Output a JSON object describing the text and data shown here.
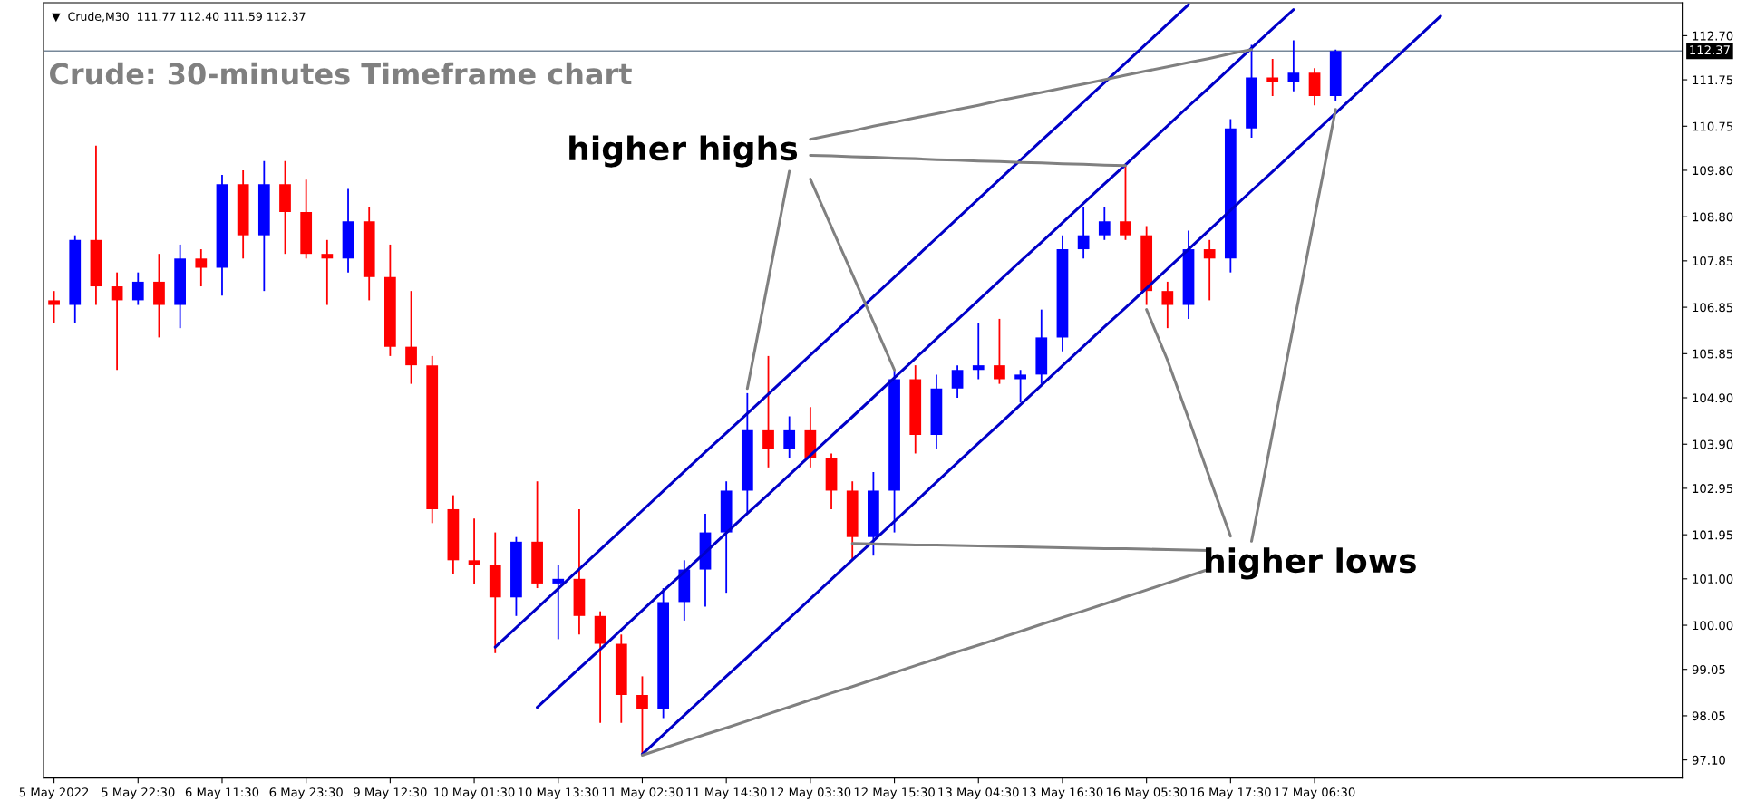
{
  "chart_data": {
    "type": "candlestick",
    "title": "Crude: 30-minutes Timeframe chart",
    "annotations": [
      "▼  Crude,M30  111.77 112.40 111.59 112.37",
      "higher highs",
      "higher lows"
    ],
    "categories": [
      "5 May 2022",
      null,
      null,
      null,
      "5 May 22:30",
      null,
      null,
      null,
      "6 May 11:30",
      null,
      null,
      null,
      "6 May 23:30",
      null,
      null,
      null,
      "9 May 12:30",
      null,
      null,
      null,
      "10 May 01:30",
      null,
      null,
      null,
      "10 May 13:30",
      null,
      null,
      null,
      "11 May 02:30",
      null,
      null,
      null,
      "11 May 14:30",
      null,
      null,
      null,
      "12 May 03:30",
      null,
      null,
      null,
      "12 May 15:30",
      null,
      null,
      null,
      "13 May 04:30",
      null,
      null,
      null,
      "13 May 16:30",
      null,
      null,
      null,
      "16 May 05:30",
      null,
      null,
      null,
      "16 May 17:30",
      null,
      null,
      null,
      "17 May 06:30",
      null,
      null,
      null,
      null,
      null,
      null,
      null,
      null,
      null,
      null,
      null,
      null,
      null,
      null,
      null,
      null,
      null
    ],
    "ohlc": [
      [
        107.0,
        107.2,
        106.5,
        106.9
      ],
      [
        106.9,
        108.4,
        106.5,
        108.3
      ],
      [
        108.3,
        110.33,
        106.9,
        107.3
      ],
      [
        107.3,
        107.6,
        105.5,
        107.0
      ],
      [
        107.0,
        107.6,
        106.9,
        107.4
      ],
      [
        107.4,
        108.0,
        106.2,
        106.9
      ],
      [
        106.9,
        108.2,
        106.4,
        107.9
      ],
      [
        107.9,
        108.1,
        107.3,
        107.7
      ],
      [
        107.7,
        109.7,
        107.1,
        109.5
      ],
      [
        109.5,
        109.8,
        107.9,
        108.4
      ],
      [
        108.4,
        110.0,
        107.2,
        109.5
      ],
      [
        109.5,
        110.0,
        108.0,
        108.9
      ],
      [
        108.9,
        109.6,
        107.9,
        108.0
      ],
      [
        108.0,
        108.3,
        106.9,
        107.9
      ],
      [
        107.9,
        109.4,
        107.6,
        108.7
      ],
      [
        108.7,
        109.0,
        107.0,
        107.5
      ],
      [
        107.5,
        108.2,
        105.8,
        106.0
      ],
      [
        106.0,
        107.2,
        105.2,
        105.6
      ],
      [
        105.6,
        105.8,
        102.2,
        102.5
      ],
      [
        102.5,
        102.8,
        101.1,
        101.4
      ],
      [
        101.4,
        102.3,
        100.9,
        101.3
      ],
      [
        101.3,
        102.0,
        99.4,
        100.6
      ],
      [
        100.6,
        101.9,
        100.2,
        101.8
      ],
      [
        101.8,
        103.1,
        100.8,
        100.9
      ],
      [
        100.9,
        101.3,
        99.7,
        101.0
      ],
      [
        101.0,
        102.5,
        99.8,
        100.2
      ],
      [
        100.2,
        100.3,
        97.9,
        99.6
      ],
      [
        99.6,
        99.8,
        97.9,
        98.5
      ],
      [
        98.5,
        98.9,
        97.2,
        98.2
      ],
      [
        98.2,
        100.8,
        98.0,
        100.5
      ],
      [
        100.5,
        101.4,
        100.1,
        101.2
      ],
      [
        101.2,
        102.4,
        100.4,
        102.0
      ],
      [
        102.0,
        103.1,
        100.7,
        102.9
      ],
      [
        102.9,
        105.0,
        102.4,
        104.2
      ],
      [
        104.2,
        105.8,
        103.4,
        103.8
      ],
      [
        103.8,
        104.5,
        103.6,
        104.2
      ],
      [
        104.2,
        104.7,
        103.4,
        103.6
      ],
      [
        103.6,
        103.7,
        102.5,
        102.9
      ],
      [
        102.9,
        103.1,
        101.4,
        101.9
      ],
      [
        101.9,
        103.3,
        101.5,
        102.9
      ],
      [
        102.9,
        105.5,
        102.0,
        105.3
      ],
      [
        105.3,
        105.6,
        103.7,
        104.1
      ],
      [
        104.1,
        105.4,
        103.8,
        105.1
      ],
      [
        105.1,
        105.6,
        104.9,
        105.5
      ],
      [
        105.5,
        106.5,
        105.3,
        105.6
      ],
      [
        105.6,
        106.6,
        105.2,
        105.3
      ],
      [
        105.3,
        105.5,
        104.8,
        105.4
      ],
      [
        105.4,
        106.8,
        105.2,
        106.2
      ],
      [
        106.2,
        108.4,
        105.9,
        108.1
      ],
      [
        108.1,
        109.0,
        107.9,
        108.4
      ],
      [
        108.4,
        109.0,
        108.3,
        108.7
      ],
      [
        108.7,
        109.9,
        108.3,
        108.4
      ],
      [
        108.4,
        108.6,
        106.9,
        107.2
      ],
      [
        107.2,
        107.4,
        106.4,
        106.9
      ],
      [
        106.9,
        108.5,
        106.6,
        108.1
      ],
      [
        108.1,
        108.3,
        107.0,
        107.9
      ],
      [
        107.9,
        110.9,
        107.6,
        110.7
      ],
      [
        110.7,
        112.5,
        110.5,
        111.8
      ],
      [
        111.8,
        112.2,
        111.4,
        111.7
      ],
      [
        111.7,
        112.6,
        111.5,
        111.9
      ],
      [
        111.9,
        112.0,
        111.2,
        111.4
      ],
      [
        111.4,
        112.4,
        111.3,
        112.37
      ],
      null,
      null,
      null,
      null,
      null,
      null,
      null,
      null,
      null,
      null,
      null,
      null,
      null,
      null,
      null,
      null
    ],
    "colors": [
      "#ff0000",
      "#0000ff",
      "#ff0000",
      "#ff0000",
      "#0000ff",
      "#ff0000",
      "#0000ff",
      "#ff0000",
      "#0000ff",
      "#ff0000",
      "#0000ff",
      "#ff0000",
      "#ff0000",
      "#ff0000",
      "#0000ff",
      "#ff0000",
      "#ff0000",
      "#ff0000",
      "#ff0000",
      "#ff0000",
      "#ff0000",
      "#ff0000",
      "#0000ff",
      "#ff0000",
      "#0000ff",
      "#ff0000",
      "#ff0000",
      "#ff0000",
      "#ff0000",
      "#0000ff",
      "#0000ff",
      "#0000ff",
      "#0000ff",
      "#0000ff",
      "#ff0000",
      "#0000ff",
      "#ff0000",
      "#ff0000",
      "#ff0000",
      "#0000ff",
      "#0000ff",
      "#ff0000",
      "#0000ff",
      "#0000ff",
      "#0000ff",
      "#ff0000",
      "#0000ff",
      "#0000ff",
      "#0000ff",
      "#0000ff",
      "#0000ff",
      "#ff0000",
      "#ff0000",
      "#ff0000",
      "#0000ff",
      "#ff0000",
      "#0000ff",
      "#0000ff",
      "#ff0000",
      "#0000ff",
      "#ff0000",
      "#0000ff",
      null,
      null,
      null,
      null,
      null,
      null,
      null,
      null,
      null,
      null,
      null,
      null,
      null,
      null,
      null,
      null
    ],
    "series": [
      {
        "type": "line",
        "color": "#0000c8",
        "values": [
          null,
          null,
          null,
          null,
          null,
          null,
          null,
          null,
          null,
          null,
          null,
          null,
          null,
          null,
          null,
          null,
          null,
          null,
          null,
          null,
          null,
          99.53,
          99.95,
          100.37,
          100.79,
          101.21,
          101.63,
          102.05,
          102.47,
          102.89,
          103.31,
          103.73,
          104.14,
          104.56,
          104.98,
          105.4,
          105.82,
          106.24,
          106.66,
          107.08,
          107.5,
          107.92,
          108.34,
          108.76,
          109.18,
          109.6,
          110.02,
          110.44,
          110.85,
          111.27,
          111.69,
          112.11,
          112.53,
          112.95,
          113.37,
          null,
          null,
          null,
          null,
          null,
          null,
          null,
          null,
          null,
          null,
          null,
          null,
          null,
          null,
          null,
          null,
          null,
          null,
          null,
          null,
          null,
          null,
          null
        ]
      },
      {
        "type": "line",
        "color": "#0000c8",
        "values": [
          null,
          null,
          null,
          null,
          null,
          null,
          null,
          null,
          null,
          null,
          null,
          null,
          null,
          null,
          null,
          null,
          null,
          null,
          null,
          null,
          null,
          null,
          null,
          98.23,
          98.65,
          99.07,
          99.48,
          99.9,
          100.32,
          100.74,
          101.15,
          101.57,
          101.99,
          102.41,
          102.82,
          103.24,
          103.66,
          104.08,
          104.49,
          104.91,
          105.33,
          105.75,
          106.17,
          106.58,
          107.0,
          107.42,
          107.84,
          108.25,
          108.67,
          109.09,
          109.51,
          109.92,
          110.34,
          110.76,
          111.18,
          111.59,
          112.01,
          112.43,
          112.85,
          113.26,
          null,
          null,
          null,
          null,
          null,
          null,
          null,
          null,
          null,
          null,
          null,
          null,
          null,
          null,
          null,
          null,
          null,
          null
        ]
      },
      {
        "type": "line",
        "color": "#0000c8",
        "values": [
          null,
          null,
          null,
          null,
          null,
          null,
          null,
          null,
          null,
          null,
          null,
          null,
          null,
          null,
          null,
          null,
          null,
          null,
          null,
          null,
          null,
          null,
          null,
          null,
          null,
          null,
          null,
          null,
          97.22,
          97.64,
          98.06,
          98.48,
          98.9,
          99.31,
          99.73,
          100.15,
          100.57,
          100.99,
          101.41,
          101.82,
          102.24,
          102.66,
          103.08,
          103.5,
          103.92,
          104.33,
          104.75,
          105.17,
          105.59,
          106.01,
          106.43,
          106.84,
          107.26,
          107.68,
          108.1,
          108.52,
          108.94,
          109.36,
          109.77,
          110.19,
          110.61,
          111.03,
          111.45,
          111.87,
          112.28,
          112.7,
          113.12,
          null,
          null,
          null,
          null,
          null,
          null,
          null,
          null,
          null,
          null,
          null
        ]
      },
      {
        "type": "line",
        "color": "#808080",
        "values": [
          null,
          null,
          null,
          null,
          null,
          null,
          null,
          null,
          null,
          null,
          null,
          null,
          null,
          null,
          null,
          null,
          null,
          null,
          null,
          null,
          null,
          null,
          null,
          null,
          null,
          null,
          null,
          null,
          null,
          null,
          null,
          null,
          null,
          null,
          null,
          null,
          110.47,
          110.56,
          110.65,
          110.75,
          110.84,
          110.93,
          111.02,
          111.11,
          111.2,
          111.3,
          111.39,
          111.48,
          111.57,
          111.66,
          111.75,
          111.85,
          111.94,
          112.03,
          112.12,
          112.21,
          112.31,
          112.4,
          null,
          null,
          null,
          null,
          null,
          null,
          null,
          null,
          null,
          null,
          null,
          null,
          null,
          null,
          null,
          null,
          null,
          null,
          null,
          null
        ]
      },
      {
        "type": "line",
        "color": "#808080",
        "values": [
          null,
          null,
          null,
          null,
          null,
          null,
          null,
          null,
          null,
          null,
          null,
          null,
          null,
          null,
          null,
          null,
          null,
          null,
          null,
          null,
          null,
          null,
          null,
          null,
          null,
          null,
          null,
          null,
          null,
          null,
          null,
          null,
          null,
          null,
          null,
          null,
          110.12,
          110.11,
          110.09,
          110.08,
          110.06,
          110.05,
          110.03,
          110.02,
          110.0,
          109.99,
          109.97,
          109.96,
          109.94,
          109.93,
          109.91,
          109.9,
          null,
          null,
          null,
          null,
          null,
          null,
          null,
          null,
          null,
          null,
          null,
          null,
          null,
          null,
          null,
          null,
          null,
          null,
          null,
          null,
          null,
          null,
          null,
          null,
          null,
          null
        ]
      },
      {
        "type": "line",
        "color": "#808080",
        "values": [
          null,
          null,
          null,
          null,
          null,
          null,
          null,
          null,
          null,
          null,
          null,
          null,
          null,
          null,
          null,
          null,
          null,
          null,
          null,
          null,
          null,
          null,
          null,
          null,
          null,
          null,
          null,
          null,
          null,
          null,
          null,
          null,
          null,
          105.1,
          107.44,
          109.78,
          null,
          null,
          null,
          null,
          null,
          null,
          null,
          null,
          null,
          null,
          null,
          null,
          null,
          null,
          null,
          null,
          null,
          null,
          null,
          null,
          null,
          null,
          null,
          null,
          null,
          null,
          null,
          null,
          null,
          null,
          null,
          null,
          null,
          null,
          null,
          null,
          null,
          null,
          null,
          null,
          null,
          null
        ]
      },
      {
        "type": "line",
        "color": "#808080",
        "values": [
          null,
          null,
          null,
          null,
          null,
          null,
          null,
          null,
          null,
          null,
          null,
          null,
          null,
          null,
          null,
          null,
          null,
          null,
          null,
          null,
          null,
          null,
          null,
          null,
          null,
          null,
          null,
          null,
          null,
          null,
          null,
          null,
          null,
          null,
          null,
          null,
          109.61,
          108.58,
          107.56,
          106.53,
          105.5,
          null,
          null,
          null,
          null,
          null,
          null,
          null,
          null,
          null,
          null,
          null,
          null,
          null,
          null,
          null,
          null,
          null,
          null,
          null,
          null,
          null,
          null,
          null,
          null,
          null,
          null,
          null,
          null,
          null,
          null,
          null,
          null,
          null,
          null,
          null,
          null,
          null
        ]
      },
      {
        "type": "line",
        "color": "#808080",
        "values": [
          null,
          null,
          null,
          null,
          null,
          null,
          null,
          null,
          null,
          null,
          null,
          null,
          null,
          null,
          null,
          null,
          null,
          null,
          null,
          null,
          null,
          null,
          null,
          null,
          null,
          null,
          null,
          null,
          null,
          null,
          null,
          null,
          null,
          null,
          null,
          null,
          null,
          null,
          101.76,
          101.75,
          101.74,
          101.73,
          101.73,
          101.72,
          101.71,
          101.7,
          101.69,
          101.68,
          101.67,
          101.66,
          101.65,
          101.65,
          101.64,
          101.63,
          101.62,
          101.61,
          null,
          null,
          null,
          null,
          null,
          null,
          null,
          null,
          null,
          null,
          null,
          null,
          null,
          null,
          null,
          null,
          null,
          null,
          null,
          null,
          null,
          null
        ]
      },
      {
        "type": "line",
        "color": "#808080",
        "values": [
          null,
          null,
          null,
          null,
          null,
          null,
          null,
          null,
          null,
          null,
          null,
          null,
          null,
          null,
          null,
          null,
          null,
          null,
          null,
          null,
          null,
          null,
          null,
          null,
          null,
          null,
          null,
          null,
          97.2,
          97.35,
          97.5,
          97.65,
          97.79,
          97.94,
          98.09,
          98.24,
          98.39,
          98.54,
          98.68,
          98.83,
          98.98,
          99.13,
          99.28,
          99.43,
          99.57,
          99.72,
          99.87,
          100.02,
          100.17,
          100.31,
          100.46,
          100.61,
          100.76,
          100.91,
          101.06,
          101.21,
          null,
          null,
          null,
          null,
          null,
          null,
          null,
          null,
          null,
          null,
          null,
          null,
          null,
          null,
          null,
          null,
          null,
          null,
          null,
          null,
          null,
          null
        ]
      },
      {
        "type": "line",
        "color": "#808080",
        "values": [
          null,
          null,
          null,
          null,
          null,
          null,
          null,
          null,
          null,
          null,
          null,
          null,
          null,
          null,
          null,
          null,
          null,
          null,
          null,
          null,
          null,
          null,
          null,
          null,
          null,
          null,
          null,
          null,
          null,
          null,
          null,
          null,
          null,
          null,
          null,
          null,
          null,
          null,
          null,
          null,
          null,
          null,
          null,
          null,
          null,
          null,
          null,
          null,
          null,
          null,
          null,
          null,
          106.8,
          105.71,
          104.45,
          103.18,
          101.92,
          null,
          null,
          null,
          null,
          null,
          null,
          null,
          null,
          null,
          null,
          null,
          null,
          null,
          null,
          null,
          null,
          null,
          null,
          null,
          null,
          null
        ]
      },
      {
        "type": "line",
        "color": "#808080",
        "values": [
          null,
          null,
          null,
          null,
          null,
          null,
          null,
          null,
          null,
          null,
          null,
          null,
          null,
          null,
          null,
          null,
          null,
          null,
          null,
          null,
          null,
          null,
          null,
          null,
          null,
          null,
          null,
          null,
          null,
          null,
          null,
          null,
          null,
          null,
          null,
          null,
          null,
          null,
          null,
          null,
          null,
          null,
          null,
          null,
          null,
          null,
          null,
          null,
          null,
          null,
          null,
          null,
          null,
          null,
          null,
          null,
          null,
          101.81,
          104.14,
          106.46,
          108.79,
          111.11,
          null,
          null,
          null,
          null,
          null,
          null,
          null,
          null,
          null,
          null,
          null,
          null,
          null,
          null,
          null,
          null
        ]
      }
    ],
    "ref_lines": [
      {
        "axis": "y",
        "value": 112.37,
        "label": "112.37",
        "color": "#778899"
      }
    ],
    "ylim": [
      96.71,
      113.41
    ],
    "yticks": [
      {
        "value": 97.1,
        "label": "97.10"
      },
      98.05,
      99.05,
      {
        "value": 100,
        "label": "100.00"
      },
      {
        "value": 101,
        "label": "101.00"
      },
      101.95,
      102.95,
      {
        "value": 103.9,
        "label": "103.90"
      },
      {
        "value": 104.9,
        "label": "104.90"
      },
      105.85,
      106.85,
      107.85,
      {
        "value": 108.8,
        "label": "108.80"
      },
      {
        "value": 109.8,
        "label": "109.80"
      },
      110.75,
      111.75,
      {
        "value": 112.7,
        "label": "112.70"
      }
    ],
    "grid": false,
    "legend": false
  }
}
